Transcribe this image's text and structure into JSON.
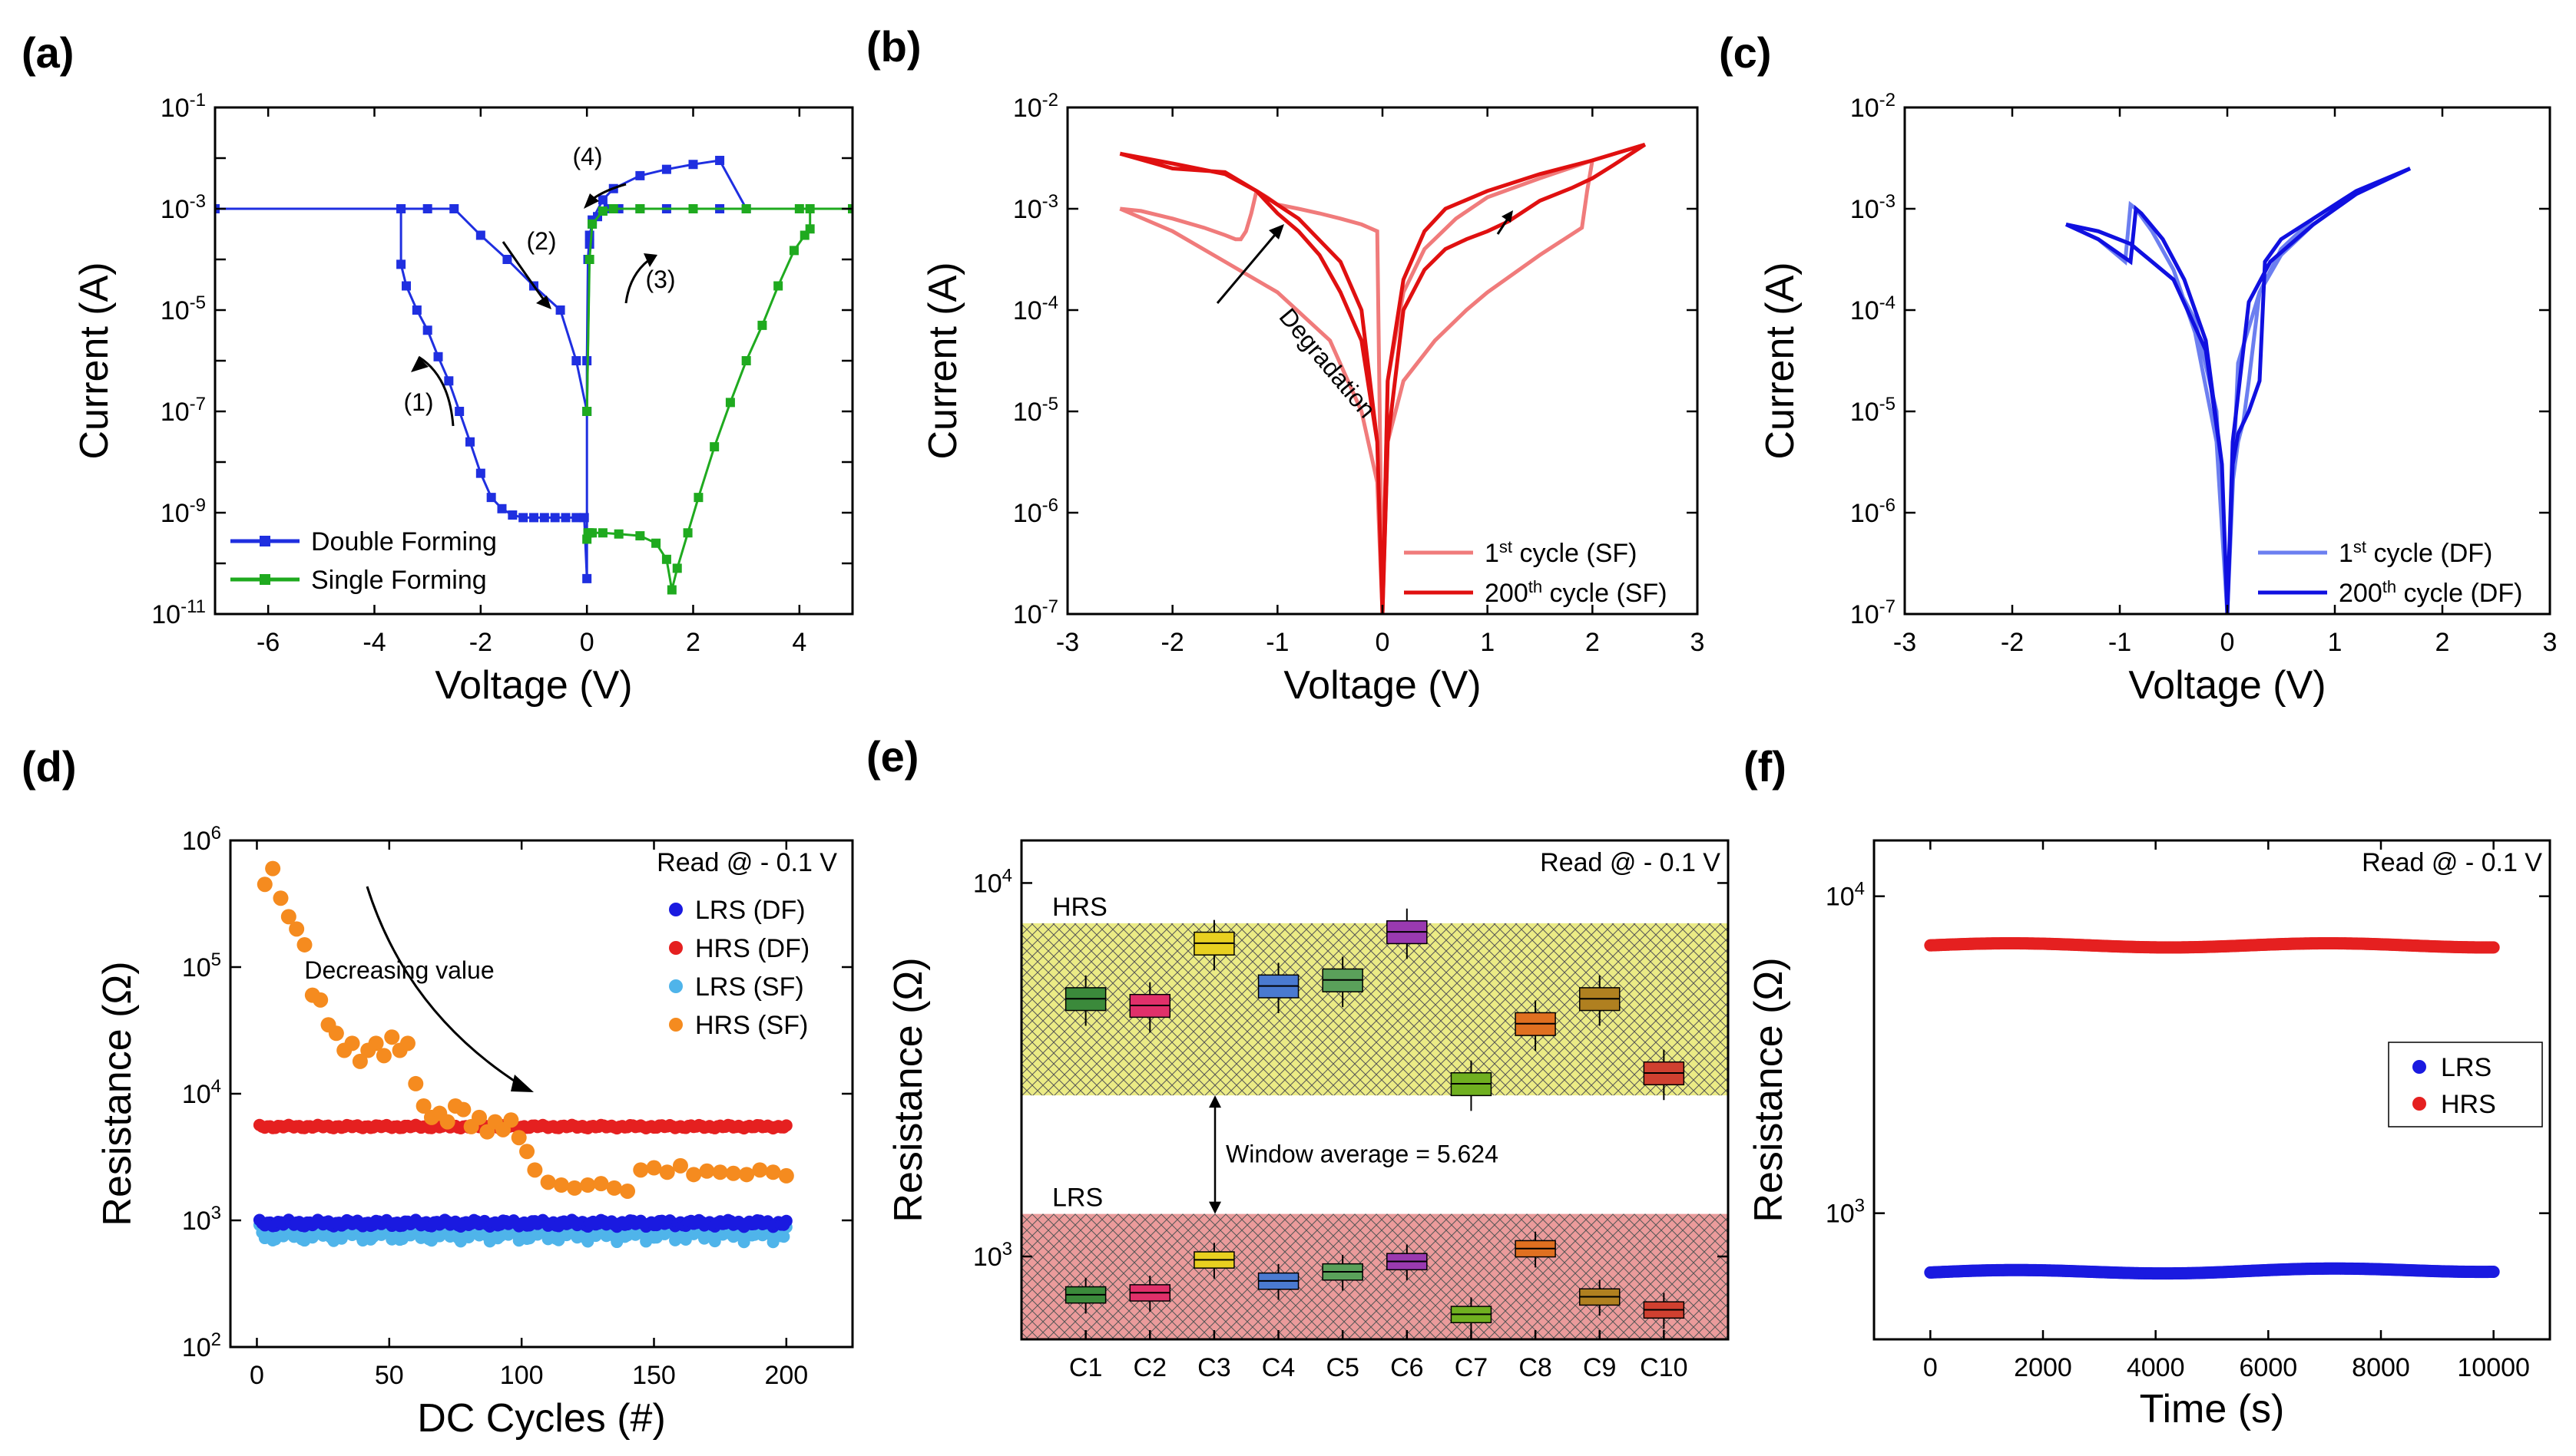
{
  "chart_data": [
    {
      "panel": "(a)",
      "type": "line",
      "xlabel": "Voltage (V)",
      "ylabel": "Current (A)",
      "yscale": "log",
      "xlim": [
        -7,
        5
      ],
      "ylim": [
        1e-11,
        0.1
      ],
      "xticks": [
        -6,
        -4,
        -2,
        0,
        2,
        4
      ],
      "yticks": [
        {
          "base": "10",
          "exp": "-1"
        },
        {
          "base": "10",
          "exp": "-3"
        },
        {
          "base": "10",
          "exp": "-5"
        },
        {
          "base": "10",
          "exp": "-7"
        },
        {
          "base": "10",
          "exp": "-9"
        },
        {
          "base": "10",
          "exp": "-11"
        }
      ],
      "annotations": [
        "(1)",
        "(2)",
        "(3)",
        "(4)"
      ],
      "series": [
        {
          "name": "Double Forming",
          "color": "#1f2fe0",
          "x": [
            -7,
            -3.5,
            -3.5,
            -3.4,
            -3.2,
            -3.0,
            -2.8,
            -2.6,
            -2.4,
            -2.2,
            -2.0,
            -1.8,
            -1.6,
            -1.4,
            -1.2,
            -1.0,
            -0.8,
            -0.6,
            -0.4,
            -0.2,
            -0.05,
            0,
            0,
            0.02,
            0.05,
            0.1,
            0.2,
            0.4,
            0.6,
            1.0,
            1.5,
            2.0,
            2.5,
            3.0,
            2.5,
            2.0,
            1.5,
            1.0,
            0.5,
            0.3,
            0.1,
            0.05,
            0,
            -0.2,
            -0.5,
            -1.0,
            -1.5,
            -2.0,
            -2.5,
            -3.0,
            -3.5
          ],
          "y": [
            0.001,
            0.001,
            8e-05,
            3e-05,
            1e-05,
            4e-06,
            1.2e-06,
            4e-07,
            1e-07,
            2.5e-08,
            6e-09,
            2e-09,
            1.2e-09,
            9e-10,
            8e-10,
            8e-10,
            8e-10,
            8e-10,
            8e-10,
            8e-10,
            8e-10,
            5e-11,
            1e-06,
            0.0001,
            0.0003,
            0.0005,
            0.0007,
            0.001,
            0.001,
            0.001,
            0.001,
            0.001,
            0.001,
            0.001,
            0.009,
            0.0075,
            0.006,
            0.0045,
            0.0025,
            0.0015,
            0.0006,
            0.0002,
            1e-07,
            1e-06,
            1e-05,
            3e-05,
            0.0001,
            0.0003,
            0.001,
            0.001,
            0.001
          ]
        },
        {
          "name": "Single Forming",
          "color": "#1faa1f",
          "x": [
            0,
            0.02,
            0.05,
            0.1,
            0.3,
            0.6,
            1.0,
            1.3,
            1.5,
            1.6,
            1.7,
            1.9,
            2.1,
            2.4,
            2.7,
            3.0,
            3.3,
            3.6,
            3.9,
            4.1,
            4.2,
            4.2,
            5.0,
            5.0,
            4.0,
            3.0,
            2.0,
            1.0,
            0.5,
            0.3,
            0.1,
            0.05,
            0
          ],
          "y": [
            3e-10,
            4e-10,
            4e-10,
            4e-10,
            4e-10,
            3.8e-10,
            3.5e-10,
            2.5e-10,
            1.2e-10,
            3e-11,
            8e-11,
            4e-10,
            2e-09,
            2e-08,
            1.5e-07,
            1e-06,
            5e-06,
            3e-05,
            0.00015,
            0.0003,
            0.0004,
            0.001,
            0.001,
            0.001,
            0.001,
            0.001,
            0.001,
            0.001,
            0.001,
            0.0009,
            0.0005,
            0.0001,
            1e-07
          ]
        }
      ]
    },
    {
      "panel": "(b)",
      "type": "line",
      "xlabel": "Voltage (V)",
      "ylabel": "Current (A)",
      "yscale": "log",
      "xlim": [
        -3,
        3
      ],
      "ylim": [
        1e-07,
        0.01
      ],
      "xticks": [
        -3,
        -2,
        -1,
        0,
        1,
        2,
        3
      ],
      "yticks": [
        {
          "base": "10",
          "exp": "-2"
        },
        {
          "base": "10",
          "exp": "-3"
        },
        {
          "base": "10",
          "exp": "-4"
        },
        {
          "base": "10",
          "exp": "-5"
        },
        {
          "base": "10",
          "exp": "-6"
        },
        {
          "base": "10",
          "exp": "-7"
        }
      ],
      "annotation": "Degradation",
      "series": [
        {
          "name": "1st cycle (SF)",
          "color": "#f07b7b",
          "x": [
            -2.5,
            -2.3,
            -2.0,
            -1.7,
            -1.5,
            -1.4,
            -1.35,
            -1.3,
            -1.25,
            -1.2,
            -1.1,
            -1.0,
            -0.8,
            -0.6,
            -0.4,
            -0.2,
            -0.05,
            0,
            0.05,
            0.2,
            0.5,
            0.8,
            1.0,
            1.5,
            1.9,
            1.95,
            2.0,
            2.5,
            2.5,
            2.0,
            1.5,
            1.0,
            0.7,
            0.4,
            0.2,
            0.05,
            0,
            -0.05,
            -0.2,
            -0.5,
            -1.0,
            -1.5,
            -2.0,
            -2.5
          ],
          "y": [
            0.001,
            0.00095,
            0.0008,
            0.00065,
            0.00055,
            0.0005,
            0.0005,
            0.0006,
            0.0009,
            0.0015,
            0.0013,
            0.0011,
            0.001,
            0.0009,
            0.0008,
            0.0007,
            0.0006,
            1e-07,
            5e-06,
            2e-05,
            5e-05,
            0.0001,
            0.00015,
            0.00035,
            0.00065,
            0.0015,
            0.003,
            0.0043,
            0.0043,
            0.003,
            0.002,
            0.0013,
            0.0008,
            0.0004,
            0.00015,
            2e-05,
            1e-07,
            2e-06,
            1e-05,
            5e-05,
            0.00015,
            0.0003,
            0.0006,
            0.001
          ]
        },
        {
          "name": "200th cycle (SF)",
          "color": "#e01010",
          "x": [
            -2.5,
            -2.0,
            -1.5,
            -1.2,
            -1.0,
            -0.8,
            -0.6,
            -0.4,
            -0.2,
            -0.05,
            0,
            0.05,
            0.2,
            0.4,
            0.6,
            0.8,
            1.0,
            1.2,
            1.5,
            1.8,
            2.0,
            2.2,
            2.5,
            2.5,
            2.0,
            1.5,
            1.0,
            0.6,
            0.4,
            0.2,
            0.05,
            0,
            -0.05,
            -0.2,
            -0.4,
            -0.8,
            -1.2,
            -1.5,
            -2.0,
            -2.5
          ],
          "y": [
            0.0035,
            0.0025,
            0.0023,
            0.0015,
            0.0009,
            0.0006,
            0.00035,
            0.00015,
            5e-05,
            5e-06,
            1e-07,
            5e-06,
            0.0001,
            0.00025,
            0.0004,
            0.0005,
            0.0006,
            0.00075,
            0.0012,
            0.0016,
            0.002,
            0.0027,
            0.0043,
            0.0043,
            0.003,
            0.0022,
            0.0015,
            0.001,
            0.0006,
            0.0002,
            2e-05,
            1e-07,
            5e-06,
            0.0001,
            0.0003,
            0.0008,
            0.0015,
            0.0022,
            0.0028,
            0.0035
          ]
        }
      ]
    },
    {
      "panel": "(c)",
      "type": "line",
      "xlabel": "Voltage (V)",
      "ylabel": "Current (A)",
      "yscale": "log",
      "xlim": [
        -3,
        3
      ],
      "ylim": [
        1e-07,
        0.01
      ],
      "xticks": [
        -3,
        -2,
        -1,
        0,
        1,
        2,
        3
      ],
      "yticks": [
        {
          "base": "10",
          "exp": "-2"
        },
        {
          "base": "10",
          "exp": "-3"
        },
        {
          "base": "10",
          "exp": "-4"
        },
        {
          "base": "10",
          "exp": "-5"
        },
        {
          "base": "10",
          "exp": "-6"
        },
        {
          "base": "10",
          "exp": "-7"
        }
      ],
      "series": [
        {
          "name": "1st cycle (DF)",
          "color": "#6c7ff0",
          "x": [
            -1.5,
            -1.2,
            -0.95,
            -0.9,
            -0.85,
            -0.7,
            -0.5,
            -0.3,
            -0.1,
            0,
            0.1,
            0.3,
            0.5,
            0.8,
            1.2,
            1.7,
            1.7,
            1.2,
            0.8,
            0.5,
            0.3,
            0.2,
            0.15,
            0.1,
            0.05,
            0,
            -0.1,
            -0.3,
            -0.5,
            -0.9,
            -1.2,
            -1.5
          ],
          "y": [
            0.0007,
            0.0005,
            0.0003,
            0.0011,
            0.001,
            0.0006,
            0.00025,
            6e-05,
            5e-06,
            1e-07,
            3e-05,
            0.00015,
            0.00035,
            0.0007,
            0.0014,
            0.0025,
            0.0025,
            0.0015,
            0.0008,
            0.0004,
            0.00015,
            2e-05,
            8e-06,
            5e-06,
            2e-06,
            1e-07,
            1e-05,
            8e-05,
            0.0002,
            0.00045,
            0.0006,
            0.0007
          ]
        },
        {
          "name": "200th cycle (DF)",
          "color": "#1010e0",
          "x": [
            -1.5,
            -1.2,
            -0.9,
            -0.85,
            -0.8,
            -0.6,
            -0.4,
            -0.2,
            -0.05,
            0,
            0.05,
            0.2,
            0.4,
            0.8,
            1.2,
            1.7,
            1.7,
            1.2,
            0.8,
            0.5,
            0.35,
            0.3,
            0.2,
            0.1,
            0.05,
            0,
            -0.05,
            -0.2,
            -0.5,
            -0.9,
            -1.2,
            -1.5
          ],
          "y": [
            0.0007,
            0.0005,
            0.0003,
            0.001,
            0.0009,
            0.0005,
            0.0002,
            5e-05,
            3e-06,
            1e-07,
            5e-06,
            0.00012,
            0.0003,
            0.0007,
            0.0014,
            0.0025,
            0.0025,
            0.0015,
            0.0008,
            0.0005,
            0.0003,
            2e-05,
            1e-05,
            6e-06,
            3e-06,
            1e-07,
            3e-06,
            4e-05,
            0.0002,
            0.00045,
            0.0006,
            0.0007
          ]
        }
      ]
    },
    {
      "panel": "(d)",
      "type": "scatter",
      "xlabel": "DC Cycles (#)",
      "ylabel": "Resistance (Ω)",
      "yscale": "log",
      "xlim": [
        -10,
        225
      ],
      "ylim": [
        100,
        1000000
      ],
      "xticks": [
        0,
        50,
        100,
        150,
        200
      ],
      "yticks": [
        {
          "base": "10",
          "exp": "6"
        },
        {
          "base": "10",
          "exp": "5"
        },
        {
          "base": "10",
          "exp": "4"
        },
        {
          "base": "10",
          "exp": "3"
        },
        {
          "base": "10",
          "exp": "2"
        }
      ],
      "legend_title": "Read @ - 0.1 V",
      "annotation": "Decreasing value",
      "series": [
        {
          "name": "LRS (DF)",
          "color": "#1a1ae0",
          "x_range": [
            1,
            200
          ],
          "values_approx": 950
        },
        {
          "name": "HRS (DF)",
          "color": "#e52020",
          "x_range": [
            1,
            200
          ],
          "values_approx": 5500
        },
        {
          "name": "LRS (SF)",
          "color": "#4fb4ea",
          "x_range": [
            1,
            200
          ],
          "values_approx": 800
        },
        {
          "name": "HRS (SF)",
          "color": "#f58b1f",
          "x": [
            3,
            6,
            9,
            12,
            15,
            18,
            21,
            24,
            27,
            30,
            33,
            36,
            39,
            42,
            45,
            48,
            51,
            54,
            57,
            60,
            63,
            66,
            69,
            72,
            75,
            78,
            81,
            84,
            87,
            90,
            93,
            96,
            99,
            102,
            105,
            110,
            115,
            120,
            125,
            130,
            135,
            140,
            145,
            150,
            155,
            160,
            165,
            170,
            175,
            180,
            185,
            190,
            195,
            200
          ],
          "y": [
            450000,
            600000,
            350000,
            250000,
            200000,
            150000,
            60000,
            55000,
            35000,
            30000,
            22000,
            25000,
            18000,
            22000,
            25000,
            20000,
            28000,
            22000,
            25000,
            12000,
            8000,
            6500,
            7000,
            6000,
            8000,
            7500,
            5500,
            6500,
            5000,
            6000,
            5200,
            6200,
            4500,
            3500,
            2500,
            2000,
            1900,
            1800,
            1900,
            1950,
            1800,
            1700,
            2500,
            2600,
            2400,
            2700,
            2300,
            2450,
            2400,
            2350,
            2300,
            2500,
            2400,
            2250
          ]
        }
      ]
    },
    {
      "panel": "(e)",
      "type": "box",
      "xlabel": "",
      "ylabel": "Resistance (Ω)",
      "yscale": "log",
      "ylim": [
        600,
        13000
      ],
      "categories": [
        "C1",
        "C2",
        "C3",
        "C4",
        "C5",
        "C6",
        "C7",
        "C8",
        "C9",
        "C10"
      ],
      "yticks": [
        {
          "base": "10",
          "exp": "4"
        },
        {
          "base": "10",
          "exp": "3"
        }
      ],
      "legend_title": "Read @ - 0.1 V",
      "bands": [
        {
          "name": "HRS",
          "low": 2700,
          "high": 7800,
          "color": "#e8e870"
        },
        {
          "name": "LRS",
          "low": 600,
          "high": 1300,
          "color": "#e88a8a"
        }
      ],
      "window_label": "Window average = 5.624",
      "hrs_box_median": [
        4900,
        4700,
        6900,
        5300,
        5500,
        7400,
        2900,
        4200,
        4900,
        3100
      ],
      "lrs_box_median": [
        790,
        800,
        980,
        860,
        910,
        970,
        700,
        1050,
        780,
        720
      ],
      "box_colors": [
        "#3b8a3b",
        "#e0306a",
        "#e8d020",
        "#4a7ad0",
        "#5aa05a",
        "#9a3ab0",
        "#70b020",
        "#e07020",
        "#b08020",
        "#d04030"
      ]
    },
    {
      "panel": "(f)",
      "type": "scatter",
      "xlabel": "Time (s)",
      "ylabel": "Resistance (Ω)",
      "yscale": "log",
      "xlim": [
        -1000,
        11000
      ],
      "ylim": [
        400,
        15000
      ],
      "xticks": [
        0,
        2000,
        4000,
        6000,
        8000,
        10000
      ],
      "yticks": [
        {
          "base": "10",
          "exp": "4"
        },
        {
          "base": "10",
          "exp": "3"
        }
      ],
      "legend_title": "Read @ - 0.1 V",
      "series": [
        {
          "name": "LRS",
          "color": "#1a1ae0",
          "x_range": [
            0,
            10000
          ],
          "values_approx": 650
        },
        {
          "name": "HRS",
          "color": "#e52020",
          "x_range": [
            0,
            10000
          ],
          "values_approx": 7000
        }
      ]
    }
  ]
}
